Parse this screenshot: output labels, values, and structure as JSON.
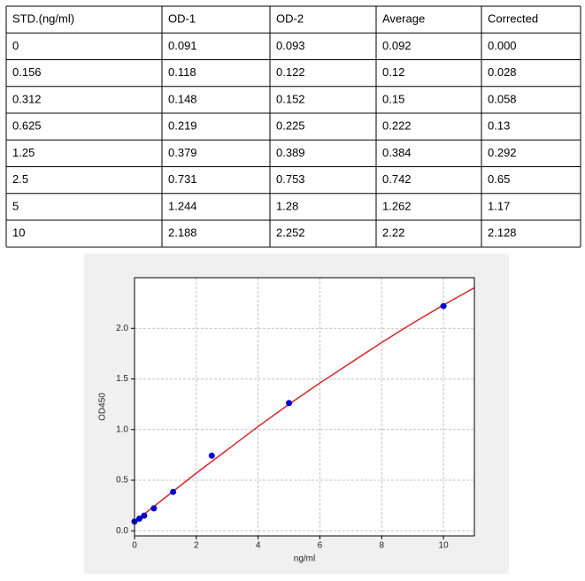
{
  "table": {
    "header": [
      "STD.(ng/ml)",
      "OD-1",
      "OD-2",
      "Average",
      "Corrected"
    ],
    "rows": [
      [
        "0",
        "0.091",
        "0.093",
        "0.092",
        "0.000"
      ],
      [
        "0.156",
        "0.118",
        "0.122",
        "0.12",
        "0.028"
      ],
      [
        "0.312",
        "0.148",
        "0.152",
        "0.15",
        "0.058"
      ],
      [
        "0.625",
        "0.219",
        "0.225",
        "0.222",
        "0.13"
      ],
      [
        "1.25",
        "0.379",
        "0.389",
        "0.384",
        "0.292"
      ],
      [
        "2.5",
        "0.731",
        "0.753",
        "0.742",
        "0.65"
      ],
      [
        "5",
        "1.244",
        "1.28",
        "1.262",
        "1.17"
      ],
      [
        "10",
        "2.188",
        "2.252",
        "2.22",
        "2.128"
      ]
    ]
  },
  "chart_data": {
    "type": "scatter",
    "xlabel": "ng/ml",
    "ylabel": "OD450",
    "series": [
      {
        "type": "scatter",
        "color": "#0000cc",
        "x": [
          0,
          0.156,
          0.312,
          0.625,
          1.25,
          2.5,
          5,
          10
        ],
        "values": [
          0.092,
          0.12,
          0.15,
          0.222,
          0.384,
          0.742,
          1.262,
          2.22
        ]
      },
      {
        "type": "line",
        "color": "#d62728",
        "x": [
          0,
          1,
          2,
          3,
          4,
          5,
          6,
          7,
          8,
          9,
          10,
          11
        ],
        "values": [
          0.09,
          0.33,
          0.57,
          0.8,
          1.03,
          1.25,
          1.46,
          1.66,
          1.86,
          2.05,
          2.23,
          2.4
        ]
      }
    ],
    "xlim": [
      0,
      11
    ],
    "xticks": [
      0,
      2,
      4,
      6,
      8,
      10
    ],
    "ylim": [
      -0.05,
      2.5
    ],
    "yticks": [
      {
        "value": 0,
        "label": "0.0"
      },
      {
        "value": 0.5,
        "label": "0.5"
      },
      {
        "value": 1,
        "label": "1.0"
      },
      {
        "value": 1.5,
        "label": "1.5"
      },
      {
        "value": 2,
        "label": "2.0"
      }
    ],
    "grid": true
  }
}
